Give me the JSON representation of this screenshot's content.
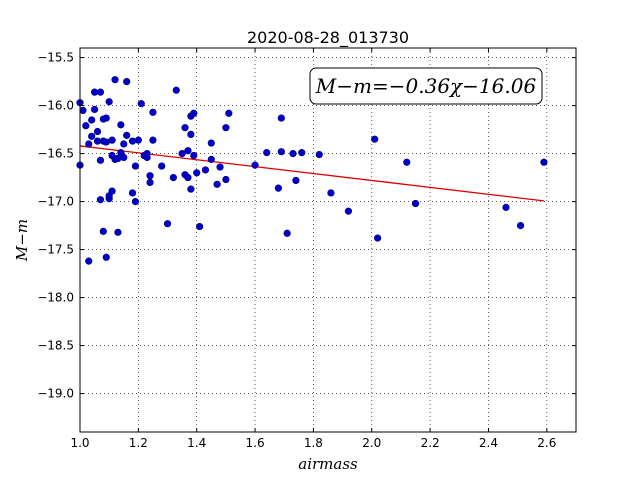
{
  "chart_data": {
    "type": "scatter",
    "title": "2020-08-28_013730",
    "xlabel": "airmass",
    "ylabel": "M−m",
    "xlim": [
      1.0,
      2.7
    ],
    "ylim": [
      -19.4,
      -15.4
    ],
    "y_inverted": true,
    "xticks": [
      "1.0",
      "1.2",
      "1.4",
      "1.6",
      "1.8",
      "2.0",
      "2.2",
      "2.4",
      "2.6"
    ],
    "yticks": [
      "−15.5",
      "−16.0",
      "−16.5",
      "−17.0",
      "−17.5",
      "−18.0",
      "−18.5",
      "−19.0"
    ],
    "grid": true,
    "annotation": "M−m=−0.36χ−16.06",
    "point_color": "#0000c8",
    "fit_color": "#dd0000",
    "fit": {
      "slope": -0.36,
      "intercept": -16.06,
      "x_range": [
        1.0,
        2.59
      ]
    },
    "series": [
      {
        "points": [
          [
            1.0,
            -15.97
          ],
          [
            1.01,
            -16.05
          ],
          [
            1.0,
            -16.62
          ],
          [
            1.02,
            -16.21
          ],
          [
            1.03,
            -16.4
          ],
          [
            1.03,
            -17.62
          ],
          [
            1.04,
            -16.32
          ],
          [
            1.04,
            -16.15
          ],
          [
            1.05,
            -16.04
          ],
          [
            1.05,
            -15.86
          ],
          [
            1.06,
            -16.27
          ],
          [
            1.06,
            -16.37
          ],
          [
            1.07,
            -15.86
          ],
          [
            1.07,
            -16.98
          ],
          [
            1.07,
            -16.57
          ],
          [
            1.08,
            -16.37
          ],
          [
            1.08,
            -16.14
          ],
          [
            1.08,
            -17.31
          ],
          [
            1.09,
            -16.13
          ],
          [
            1.09,
            -16.38
          ],
          [
            1.09,
            -17.58
          ],
          [
            1.1,
            -15.96
          ],
          [
            1.1,
            -16.97
          ],
          [
            1.1,
            -16.94
          ],
          [
            1.11,
            -16.89
          ],
          [
            1.11,
            -16.52
          ],
          [
            1.11,
            -16.36
          ],
          [
            1.12,
            -16.56
          ],
          [
            1.12,
            -15.73
          ],
          [
            1.13,
            -16.55
          ],
          [
            1.13,
            -17.32
          ],
          [
            1.14,
            -16.2
          ],
          [
            1.14,
            -16.49
          ],
          [
            1.15,
            -16.54
          ],
          [
            1.15,
            -16.4
          ],
          [
            1.16,
            -16.31
          ],
          [
            1.16,
            -15.75
          ],
          [
            1.18,
            -16.37
          ],
          [
            1.18,
            -16.91
          ],
          [
            1.19,
            -17.0
          ],
          [
            1.19,
            -16.63
          ],
          [
            1.2,
            -16.36
          ],
          [
            1.21,
            -15.98
          ],
          [
            1.22,
            -16.52
          ],
          [
            1.23,
            -16.54
          ],
          [
            1.23,
            -16.5
          ],
          [
            1.24,
            -16.73
          ],
          [
            1.24,
            -16.8
          ],
          [
            1.25,
            -16.36
          ],
          [
            1.25,
            -16.07
          ],
          [
            1.28,
            -16.63
          ],
          [
            1.3,
            -17.23
          ],
          [
            1.32,
            -16.75
          ],
          [
            1.33,
            -15.84
          ],
          [
            1.35,
            -16.5
          ],
          [
            1.36,
            -16.23
          ],
          [
            1.36,
            -16.72
          ],
          [
            1.37,
            -16.75
          ],
          [
            1.37,
            -16.47
          ],
          [
            1.38,
            -16.3
          ],
          [
            1.38,
            -16.87
          ],
          [
            1.38,
            -16.11
          ],
          [
            1.39,
            -16.08
          ],
          [
            1.39,
            -16.52
          ],
          [
            1.4,
            -16.7
          ],
          [
            1.41,
            -17.26
          ],
          [
            1.43,
            -16.67
          ],
          [
            1.45,
            -16.56
          ],
          [
            1.45,
            -16.39
          ],
          [
            1.47,
            -16.82
          ],
          [
            1.48,
            -16.64
          ],
          [
            1.5,
            -16.77
          ],
          [
            1.5,
            -16.23
          ],
          [
            1.51,
            -16.08
          ],
          [
            1.6,
            -16.62
          ],
          [
            1.64,
            -16.49
          ],
          [
            1.68,
            -16.86
          ],
          [
            1.69,
            -16.48
          ],
          [
            1.69,
            -16.13
          ],
          [
            1.71,
            -17.33
          ],
          [
            1.73,
            -16.5
          ],
          [
            1.74,
            -16.78
          ],
          [
            1.76,
            -16.49
          ],
          [
            1.82,
            -16.51
          ],
          [
            1.86,
            -16.91
          ],
          [
            1.92,
            -17.1
          ],
          [
            2.01,
            -16.35
          ],
          [
            2.02,
            -17.38
          ],
          [
            2.12,
            -16.59
          ],
          [
            2.15,
            -17.02
          ],
          [
            2.46,
            -17.06
          ],
          [
            2.51,
            -17.25
          ],
          [
            2.59,
            -16.59
          ]
        ]
      }
    ]
  }
}
